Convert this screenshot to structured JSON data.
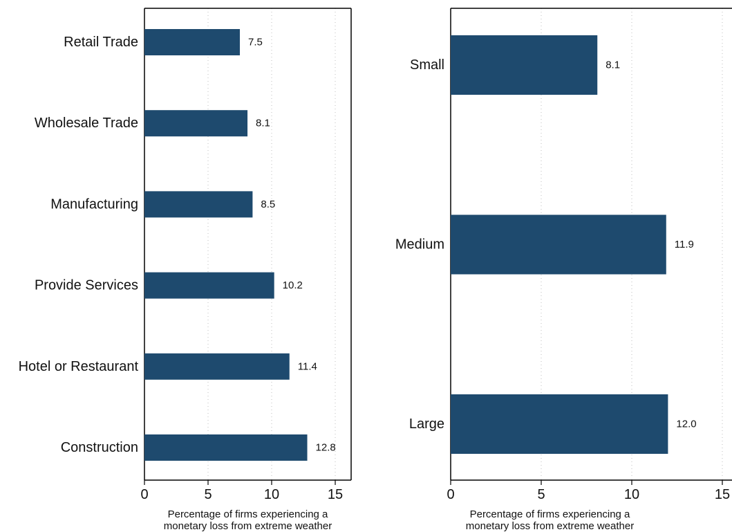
{
  "chart_data": [
    {
      "type": "bar",
      "orientation": "horizontal",
      "categories": [
        "Retail Trade",
        "Wholesale Trade",
        "Manufacturing",
        "Provide Services",
        "Hotel or Restaurant",
        "Construction"
      ],
      "values": [
        7.5,
        8.1,
        8.5,
        10.2,
        11.4,
        12.8
      ],
      "value_labels": [
        "7.5",
        "8.1",
        "8.5",
        "10.2",
        "11.4",
        "12.8"
      ],
      "xlabel_lines": [
        "Percentage of firms experiencing a",
        "monetary loss from extreme weather"
      ],
      "xlim": [
        0,
        16
      ],
      "xticks": [
        "0",
        "5",
        "10",
        "15"
      ],
      "grid": "vertical dotted",
      "bar_color": "#1e4a6e"
    },
    {
      "type": "bar",
      "orientation": "horizontal",
      "categories": [
        "Small",
        "Medium",
        "Large"
      ],
      "values": [
        8.1,
        11.9,
        12.0
      ],
      "value_labels": [
        "8.1",
        "11.9",
        "12.0"
      ],
      "xlabel_lines": [
        "Percentage of firms experiencing a",
        "monetary loss from extreme weather"
      ],
      "xlim": [
        0,
        16
      ],
      "xticks": [
        "0",
        "5",
        "10",
        "15"
      ],
      "grid": "vertical dotted",
      "bar_color": "#1e4a6e"
    }
  ]
}
